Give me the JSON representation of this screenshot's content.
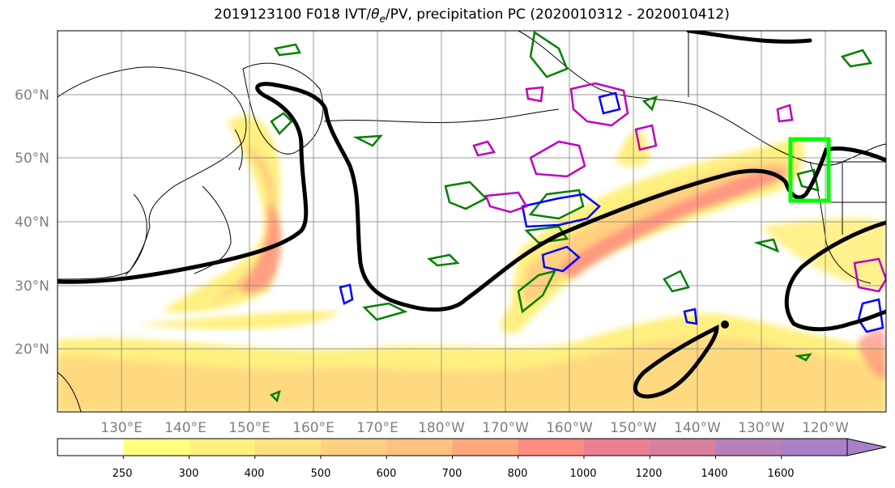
{
  "title": {
    "prefix": "2019123100 F018 IVT/",
    "symbol": "θ",
    "subscript": "e",
    "suffix": "/PV, precipitation PC (2020010312 - 2020010412)"
  },
  "map": {
    "lat_labels": [
      "60°N",
      "50°N",
      "40°N",
      "30°N",
      "20°N"
    ],
    "lon_labels": [
      "130°E",
      "140°E",
      "150°E",
      "160°E",
      "170°E",
      "180°W",
      "170°W",
      "160°W",
      "150°W",
      "140°W",
      "130°W",
      "120°W"
    ],
    "grid": true,
    "target_box": {
      "label": "",
      "color": "#00ff00"
    }
  },
  "colorbar": {
    "ticks": [
      "250",
      "300",
      "400",
      "500",
      "600",
      "700",
      "800",
      "1000",
      "1200",
      "1400",
      "1600"
    ],
    "colors": [
      "#ffffff",
      "#ffff80",
      "#fff080",
      "#ffe080",
      "#ffd080",
      "#ffc080",
      "#ffa880",
      "#ff8c80",
      "#ec8090",
      "#d880a0",
      "#b880b8",
      "#a880c8"
    ],
    "extend": "max"
  },
  "contour_colors": {
    "theta_e": "#000000",
    "pv_positive": "#008000",
    "pv_negative": "#0000ff",
    "precip_pc": "#c000c0"
  }
}
